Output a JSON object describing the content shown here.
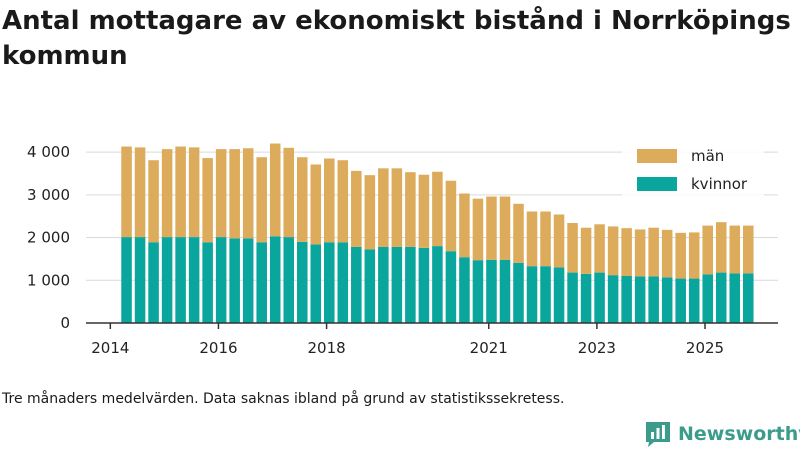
{
  "title": "Antal mottagare av ekonomiskt bistånd i Norrköpings kommun",
  "note": "Tre månaders medelvärden. Data saknas ibland på grund av statistikssekretess.",
  "brand": {
    "name": "Newsworthy"
  },
  "colors": {
    "man": "#dcac5c",
    "kvinnor": "#0aa59c",
    "axis": "#333333",
    "brand": "#3b9c8c"
  },
  "chart_data": {
    "type": "bar",
    "stacked": true,
    "title": "Antal mottagare av ekonomiskt bistånd i Norrköpings kommun",
    "xlabel": "",
    "ylabel": "",
    "ylim": [
      0,
      4400
    ],
    "y_ticks": [
      0,
      1000,
      2000,
      3000,
      4000
    ],
    "y_tick_labels": [
      "0",
      "1 000",
      "2 000",
      "3 000",
      "4 000"
    ],
    "x_range": [
      2013.55,
      2026.35
    ],
    "x_ticks": [
      2014,
      2016,
      2018,
      2021,
      2023,
      2025
    ],
    "x_tick_labels": [
      "2014",
      "2016",
      "2018",
      "2021",
      "2023",
      "2025"
    ],
    "legend_position": "top-right",
    "x": [
      2014.3,
      2014.55,
      2014.8,
      2015.05,
      2015.3,
      2015.55,
      2015.8,
      2016.05,
      2016.3,
      2016.55,
      2016.8,
      2017.05,
      2017.3,
      2017.55,
      2017.8,
      2018.05,
      2018.3,
      2018.55,
      2018.8,
      2019.05,
      2019.3,
      2019.55,
      2019.8,
      2020.05,
      2020.3,
      2020.55,
      2020.8,
      2021.05,
      2021.3,
      2021.55,
      2021.8,
      2022.05,
      2022.3,
      2022.55,
      2022.8,
      2023.05,
      2023.3,
      2023.55,
      2023.8,
      2024.05,
      2024.3,
      2024.55,
      2024.8,
      2025.05,
      2025.3,
      2025.55,
      2025.8
    ],
    "series": [
      {
        "name": "kvinnor",
        "color": "#0aa59c",
        "values": [
          2010,
          2010,
          1890,
          2010,
          2010,
          2010,
          1890,
          2010,
          1980,
          1980,
          1890,
          2030,
          2010,
          1900,
          1840,
          1890,
          1890,
          1780,
          1720,
          1780,
          1780,
          1780,
          1760,
          1800,
          1680,
          1540,
          1470,
          1480,
          1480,
          1410,
          1330,
          1330,
          1300,
          1180,
          1150,
          1180,
          1120,
          1100,
          1090,
          1090,
          1070,
          1040,
          1040,
          1140,
          1180,
          1160,
          1160
        ]
      },
      {
        "name": "män",
        "color": "#dcac5c",
        "values": [
          2120,
          2100,
          1920,
          2060,
          2120,
          2100,
          1970,
          2060,
          2090,
          2110,
          1990,
          2170,
          2090,
          1980,
          1870,
          1960,
          1920,
          1780,
          1740,
          1840,
          1840,
          1750,
          1710,
          1740,
          1650,
          1490,
          1440,
          1480,
          1480,
          1380,
          1280,
          1280,
          1240,
          1160,
          1080,
          1130,
          1140,
          1120,
          1100,
          1140,
          1110,
          1070,
          1080,
          1140,
          1180,
          1120,
          1120
        ]
      }
    ]
  }
}
